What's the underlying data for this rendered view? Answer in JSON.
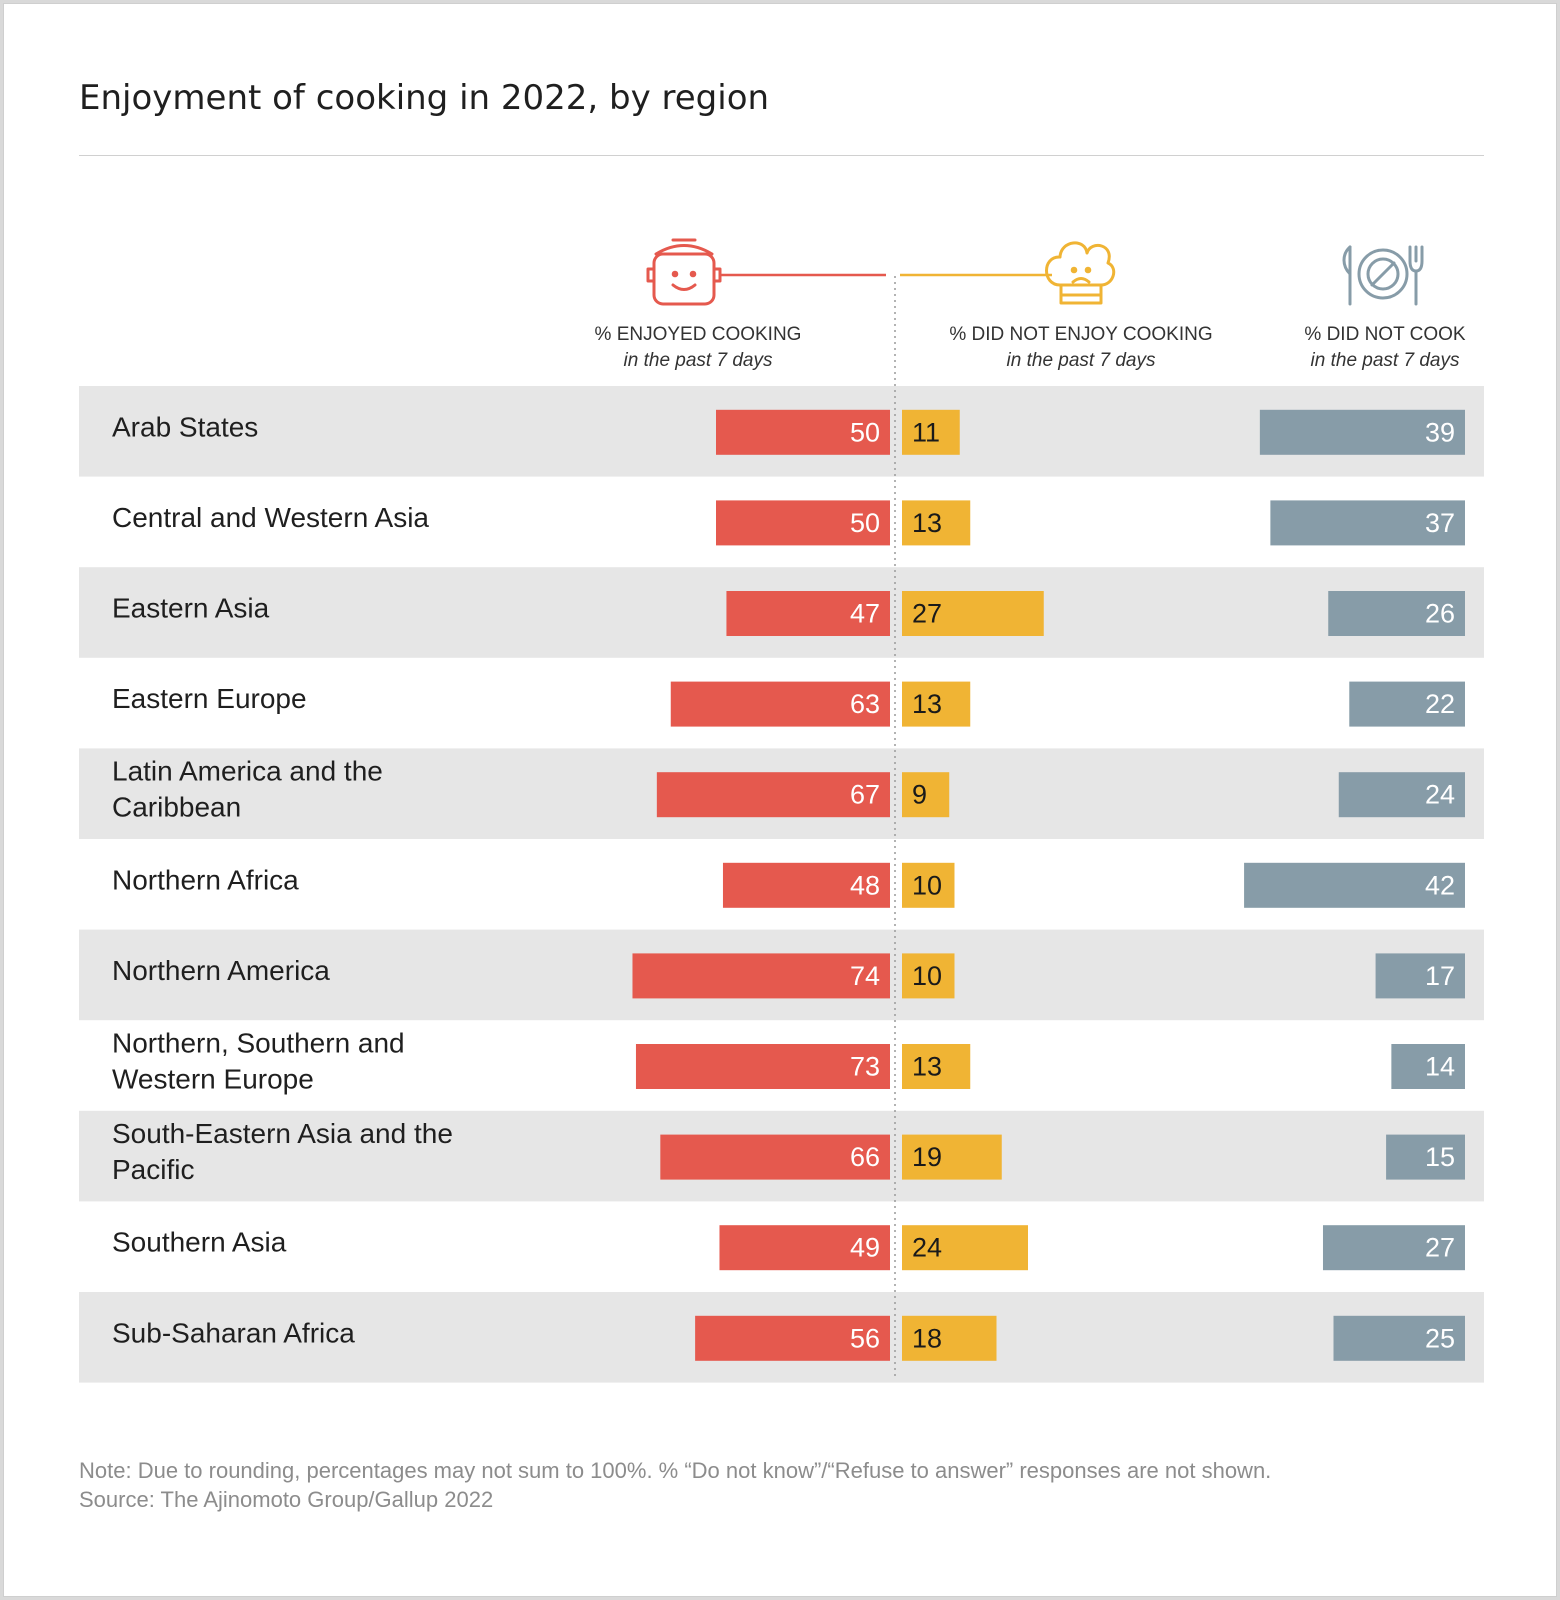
{
  "title": "Enjoyment of cooking in 2022, by region",
  "note": "Note: Due to rounding, percentages may not sum to 100%. % “Do not know”/“Refuse to answer” responses are not shown.",
  "source": "Source: The Ajinomoto Group/Gallup 2022",
  "colors": {
    "enjoyed": "#e5594e",
    "did_not_enjoy": "#f0b434",
    "did_not_cook": "#879ca8",
    "band": "#e6e6e6"
  },
  "columns": [
    {
      "key": "enjoyed",
      "header": "% ENJOYED COOKING",
      "subheader": "in the past 7 days",
      "icon": "smiling-pot-icon"
    },
    {
      "key": "did_not_enjoy",
      "header": "% DID NOT ENJOY COOKING",
      "subheader": "in the past 7 days",
      "icon": "frowning-chef-hat-icon"
    },
    {
      "key": "did_not_cook",
      "header": "% DID NOT COOK",
      "subheader": "in the past 7 days",
      "icon": "empty-plate-cutlery-icon"
    }
  ],
  "chart_data": {
    "type": "bar",
    "orientation": "horizontal",
    "categories": [
      "Arab States",
      "Central and Western Asia",
      "Eastern Asia",
      "Eastern Europe",
      "Latin America and the Caribbean",
      "Northern Africa",
      "Northern America",
      "Northern, Southern and Western Europe",
      "South-Eastern Asia and the Pacific",
      "Southern Asia",
      "Sub-Saharan Africa"
    ],
    "series": [
      {
        "name": "% ENJOYED COOKING in the past 7 days",
        "values": [
          50,
          50,
          47,
          63,
          67,
          48,
          74,
          73,
          66,
          49,
          56
        ]
      },
      {
        "name": "% DID NOT ENJOY COOKING in the past 7 days",
        "values": [
          11,
          13,
          27,
          13,
          9,
          10,
          10,
          13,
          19,
          24,
          18
        ]
      },
      {
        "name": "% DID NOT COOK in the past 7 days",
        "values": [
          39,
          37,
          26,
          22,
          24,
          42,
          17,
          14,
          15,
          27,
          25
        ]
      }
    ],
    "xlim": [
      0,
      100
    ],
    "data_labels": true,
    "grid": false,
    "alternating_row_bands": true
  }
}
